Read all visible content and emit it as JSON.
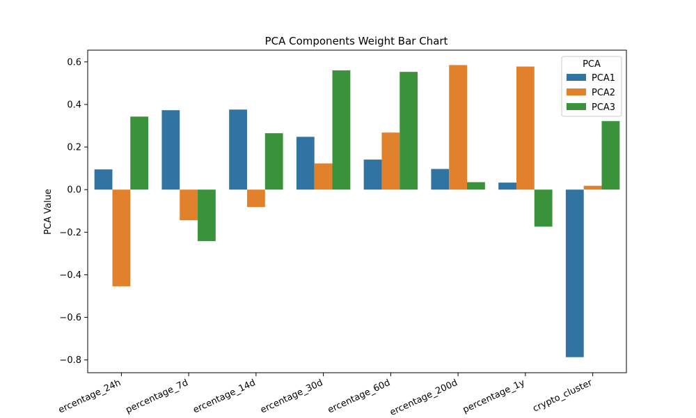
{
  "chart_data": {
    "type": "bar",
    "title": "PCA Components Weight Bar Chart",
    "xlabel": "",
    "ylabel": "PCA Value",
    "categories": [
      "ercentage_24h",
      "percentage_7d",
      "ercentage_14d",
      "ercentage_30d",
      "ercentage_60d",
      "ercentage_200d",
      "percentage_1y",
      "crypto_cluster"
    ],
    "series": [
      {
        "name": "PCA1",
        "color": "#3274a1",
        "values": [
          0.095,
          0.373,
          0.376,
          0.248,
          0.141,
          0.097,
          0.033,
          -0.787
        ]
      },
      {
        "name": "PCA2",
        "color": "#e1812c",
        "values": [
          -0.454,
          -0.144,
          -0.082,
          0.123,
          0.268,
          0.585,
          0.578,
          0.018
        ]
      },
      {
        "name": "PCA3",
        "color": "#3a923a",
        "values": [
          0.343,
          -0.242,
          0.265,
          0.56,
          0.553,
          0.035,
          -0.174,
          0.322
        ]
      }
    ],
    "ylim": [
      -0.86,
      0.655
    ],
    "yticks": [
      -0.8,
      -0.6,
      -0.4,
      -0.2,
      0.0,
      0.2,
      0.4,
      0.6
    ],
    "ytick_labels": [
      "−0.8",
      "−0.6",
      "−0.4",
      "−0.2",
      "0.0",
      "0.2",
      "0.4",
      "0.6"
    ],
    "grid": false,
    "legend": {
      "title": "PCA",
      "position": "top-right"
    }
  }
}
